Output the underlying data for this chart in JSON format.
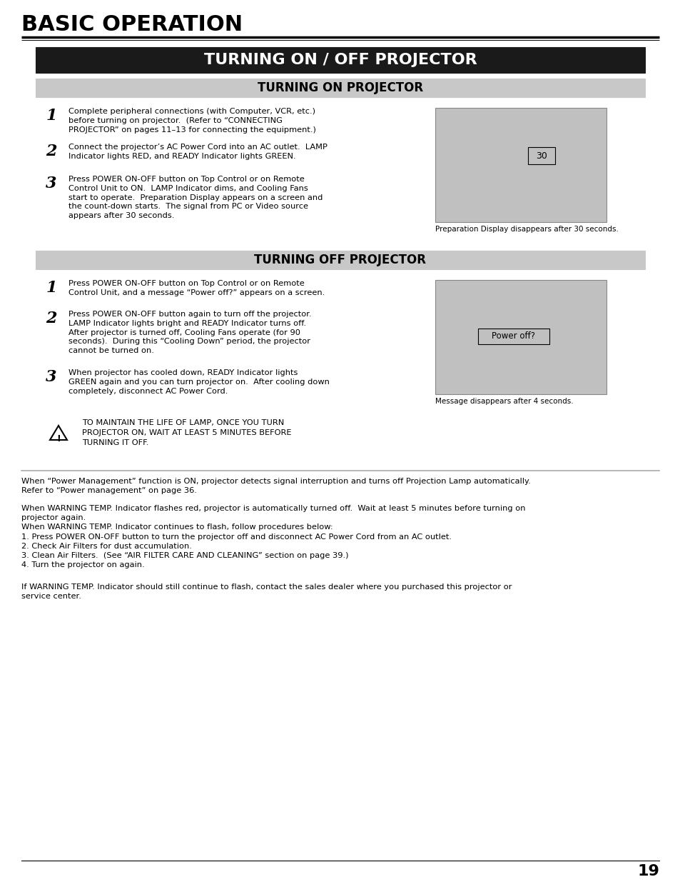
{
  "page_bg": "#ffffff",
  "page_number": "19",
  "title_main": "BASIC OPERATION",
  "section1_title": "TURNING ON / OFF PROJECTOR",
  "section1_bg": "#1a1a1a",
  "section1_text_color": "#ffffff",
  "subsection1_title": "TURNING ON PROJECTOR",
  "subsection1_bg": "#c8c8c8",
  "subsection2_title": "TURNING OFF PROJECTOR",
  "subsection2_bg": "#c8c8c8",
  "on_steps": [
    [
      "1",
      "Complete peripheral connections (with Computer, VCR, etc.)\nbefore turning on projector.  (Refer to “CONNECTING\nPROJECTOR” on pages 11–13 for connecting the equipment.)"
    ],
    [
      "2",
      "Connect the projector’s AC Power Cord into an AC outlet.  LAMP\nIndicator lights RED, and READY Indicator lights GREEN."
    ],
    [
      "3",
      "Press POWER ON-OFF button on Top Control or on Remote\nControl Unit to ON.  LAMP Indicator dims, and Cooling Fans\nstart to operate.  Preparation Display appears on a screen and\nthe count-down starts.  The signal from PC or Video source\nappears after 30 seconds."
    ]
  ],
  "off_steps": [
    [
      "1",
      "Press POWER ON-OFF button on Top Control or on Remote\nControl Unit, and a message “Power off?” appears on a screen."
    ],
    [
      "2",
      "Press POWER ON-OFF button again to turn off the projector.\nLAMP Indicator lights bright and READY Indicator turns off.\nAfter projector is turned off, Cooling Fans operate (for 90\nseconds).  During this “Cooling Down” period, the projector\ncannot be turned on."
    ],
    [
      "3",
      "When projector has cooled down, READY Indicator lights\nGREEN again and you can turn projector on.  After cooling down\ncompletely, disconnect AC Power Cord."
    ]
  ],
  "img1_label": "Preparation Display disappears after 30 seconds.",
  "img2_label": "Message disappears after 4 seconds.",
  "img1_inner_text": "30",
  "img2_inner_text": "Power off?",
  "warning_text": "TO MAINTAIN THE LIFE OF LAMP, ONCE YOU TURN\nPROJECTOR ON, WAIT AT LEAST 5 MINUTES BEFORE\nTURNING IT OFF.",
  "footer_para1": "When “Power Management” function is ON, projector detects signal interruption and turns off Projection Lamp automatically.\nRefer to “Power management” on page 36.",
  "footer_para2_line1": "When WARNING TEMP. Indicator flashes red, projector is automatically turned off.  Wait at least 5 minutes before turning on",
  "footer_para2_line2": "projector again.",
  "footer_para2_line3": "When WARNING TEMP. Indicator continues to flash, follow procedures below:",
  "footer_para2_line4": "1. Press POWER ON-OFF button to turn the projector off and disconnect AC Power Cord from an AC outlet.",
  "footer_para2_line5": "2. Check Air Filters for dust accumulation.",
  "footer_para2_line6": "3. Clean Air Filters.  (See “AIR FILTER CARE AND CLEANING” section on page 39.)",
  "footer_para2_line7": "4. Turn the projector on again.",
  "footer_para3": "If WARNING TEMP. Indicator should still continue to flash, contact the sales dealer where you purchased this projector or\nservice center."
}
